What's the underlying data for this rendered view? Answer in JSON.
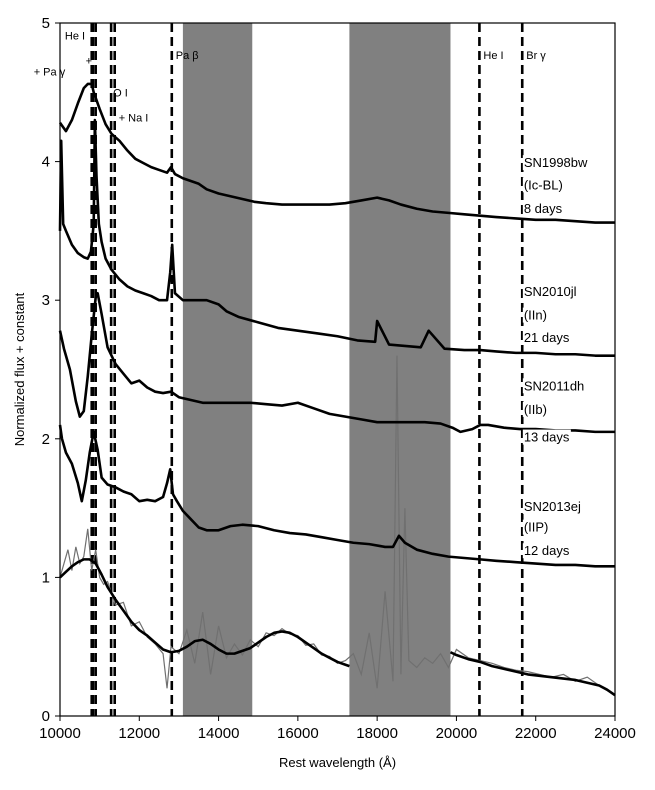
{
  "chart_data": {
    "type": "line",
    "xlabel": "Rest wavelength (Å)",
    "ylabel": "Normalized flux + constant",
    "xlim": [
      10000,
      24000
    ],
    "ylim": [
      0,
      5
    ],
    "x_ticks": [
      10000,
      12000,
      14000,
      16000,
      18000,
      20000,
      22000,
      24000
    ],
    "y_ticks": [
      0,
      1,
      2,
      3,
      4,
      5
    ],
    "grid": false,
    "shaded_regions": [
      {
        "x0": 13100,
        "x1": 14850,
        "color": "#808080"
      },
      {
        "x0": 17300,
        "x1": 19850,
        "color": "#808080"
      }
    ],
    "line_ids": [
      {
        "label": "+ Pa γ",
        "x": 10800,
        "label_y": 4.62
      },
      {
        "label": "He I",
        "x": 10830,
        "label_y": 4.88
      },
      {
        "label": "+",
        "x": 10900,
        "label_y": 4.7
      },
      {
        "label": "O I",
        "x": 11290,
        "label_y": 4.47
      },
      {
        "label": "+ Na I",
        "x": 11380,
        "label_y": 4.29
      },
      {
        "label": "Pa β",
        "x": 12820,
        "label_y": 4.74
      },
      {
        "label": "He I",
        "x": 20580,
        "label_y": 4.74
      },
      {
        "label": "Br γ",
        "x": 21660,
        "label_y": 4.74
      }
    ],
    "series": [
      {
        "name_lines": [
          "SN1998bw",
          "(Ic-BL)",
          "8 days"
        ],
        "label_y": [
          3.96,
          3.8,
          3.63
        ],
        "color": "#000000",
        "x": [
          10000,
          10150,
          10300,
          10450,
          10600,
          10700,
          10800,
          10850,
          10900,
          11000,
          11150,
          11300,
          11500,
          11700,
          11900,
          12100,
          12300,
          12500,
          12700,
          12800,
          12900,
          13100,
          13300,
          13500,
          13700,
          14000,
          14300,
          14600,
          14900,
          15200,
          15600,
          16000,
          16400,
          16800,
          17200,
          17600,
          18000,
          18300,
          18600,
          19000,
          19400,
          19800,
          20200,
          20600,
          21000,
          21500,
          22000,
          22500,
          23000,
          23500,
          24000
        ],
        "values": [
          4.28,
          4.22,
          4.3,
          4.42,
          4.53,
          4.56,
          4.56,
          4.5,
          4.46,
          4.38,
          4.27,
          4.2,
          4.15,
          4.08,
          4.02,
          3.99,
          3.96,
          3.94,
          3.92,
          3.96,
          3.91,
          3.88,
          3.86,
          3.84,
          3.8,
          3.77,
          3.75,
          3.73,
          3.71,
          3.7,
          3.69,
          3.69,
          3.69,
          3.69,
          3.7,
          3.72,
          3.74,
          3.72,
          3.69,
          3.66,
          3.64,
          3.63,
          3.62,
          3.61,
          3.6,
          3.59,
          3.58,
          3.58,
          3.57,
          3.56,
          3.56
        ]
      },
      {
        "name_lines": [
          "SN2010jl",
          "(IIn)",
          "21 days"
        ],
        "label_y": [
          3.03,
          2.86,
          2.7
        ],
        "color": "#000000",
        "x": [
          10000,
          10030,
          10080,
          10150,
          10300,
          10450,
          10600,
          10700,
          10780,
          10850,
          10880,
          10920,
          10980,
          11050,
          11150,
          11300,
          11500,
          11700,
          11900,
          12100,
          12300,
          12500,
          12700,
          12780,
          12830,
          12900,
          13100,
          13300,
          13500,
          13700,
          14000,
          14200,
          14500,
          15000,
          15500,
          16000,
          16500,
          17000,
          17500,
          17950,
          18000,
          18300,
          18700,
          19100,
          19300,
          19700,
          20200,
          20600,
          21000,
          21500,
          22000,
          22500,
          23000,
          23500,
          24000
        ],
        "values": [
          3.5,
          4.15,
          3.55,
          3.5,
          3.4,
          3.34,
          3.31,
          3.3,
          3.35,
          3.55,
          4.3,
          3.9,
          3.55,
          3.42,
          3.3,
          3.22,
          3.15,
          3.1,
          3.07,
          3.05,
          3.03,
          3.0,
          3.0,
          3.2,
          3.4,
          3.05,
          3.0,
          3.0,
          3.0,
          3.0,
          2.97,
          2.92,
          2.88,
          2.84,
          2.8,
          2.78,
          2.76,
          2.74,
          2.71,
          2.7,
          2.85,
          2.68,
          2.67,
          2.66,
          2.78,
          2.65,
          2.64,
          2.64,
          2.63,
          2.62,
          2.62,
          2.61,
          2.61,
          2.6,
          2.6
        ]
      },
      {
        "name_lines": [
          "SN2011dh",
          "(IIb)",
          "13 days"
        ],
        "label_y": [
          2.35,
          2.18,
          1.98
        ],
        "color": "#000000",
        "x": [
          10000,
          10100,
          10250,
          10400,
          10500,
          10600,
          10700,
          10800,
          10900,
          10950,
          11050,
          11200,
          11400,
          11600,
          11800,
          12000,
          12200,
          12400,
          12600,
          12800,
          13000,
          13300,
          13600,
          14000,
          14400,
          14800,
          15200,
          15600,
          16000,
          16400,
          16800,
          17200,
          17600,
          18000,
          18400,
          18800,
          19200,
          19600,
          19900,
          20100,
          20400,
          20600,
          20800,
          21200,
          21600,
          22000,
          22500,
          23000,
          23500,
          24000
        ],
        "values": [
          2.78,
          2.65,
          2.5,
          2.27,
          2.16,
          2.2,
          2.45,
          2.75,
          3.02,
          3.05,
          2.9,
          2.66,
          2.54,
          2.47,
          2.4,
          2.42,
          2.37,
          2.34,
          2.33,
          2.34,
          2.3,
          2.28,
          2.26,
          2.26,
          2.26,
          2.26,
          2.25,
          2.24,
          2.26,
          2.22,
          2.18,
          2.16,
          2.14,
          2.12,
          2.12,
          2.12,
          2.12,
          2.11,
          2.08,
          2.05,
          2.07,
          2.1,
          2.1,
          2.08,
          2.07,
          2.07,
          2.06,
          2.06,
          2.05,
          2.05
        ]
      },
      {
        "name_lines": [
          "SN2013ej",
          "(IIP)",
          "12 days"
        ],
        "label_y": [
          1.48,
          1.33,
          1.16
        ],
        "color": "#000000",
        "x": [
          10000,
          10050,
          10150,
          10300,
          10450,
          10550,
          10650,
          10750,
          10850,
          10950,
          11050,
          11200,
          11400,
          11600,
          11800,
          12000,
          12200,
          12400,
          12600,
          12700,
          12780,
          12850,
          12950,
          13100,
          13300,
          13500,
          13700,
          14000,
          14300,
          14600,
          15000,
          15400,
          15800,
          16200,
          16600,
          17000,
          17400,
          17800,
          18200,
          18400,
          18550,
          18700,
          19000,
          19400,
          19800,
          20200,
          20600,
          21000,
          21500,
          22000,
          22500,
          23000,
          23500,
          24000
        ],
        "values": [
          2.1,
          2.0,
          1.9,
          1.82,
          1.68,
          1.55,
          1.7,
          1.9,
          2.05,
          1.92,
          1.72,
          1.67,
          1.65,
          1.62,
          1.6,
          1.55,
          1.56,
          1.55,
          1.58,
          1.68,
          1.78,
          1.6,
          1.55,
          1.48,
          1.42,
          1.36,
          1.34,
          1.34,
          1.37,
          1.38,
          1.37,
          1.34,
          1.32,
          1.31,
          1.29,
          1.27,
          1.25,
          1.24,
          1.22,
          1.22,
          1.3,
          1.25,
          1.2,
          1.17,
          1.15,
          1.14,
          1.13,
          1.12,
          1.11,
          1.1,
          1.09,
          1.09,
          1.08,
          1.08
        ]
      },
      {
        "name": "",
        "color": "#000000",
        "x": [
          10000,
          10150,
          10300,
          10450,
          10600,
          10750,
          10900,
          11050,
          11200,
          11400,
          11600,
          11800,
          12000,
          12200,
          12400,
          12600,
          12800,
          13000,
          13200,
          13400,
          13600,
          13800,
          14000,
          14200,
          14400,
          14600,
          14800,
          15000,
          15200,
          15400,
          15600,
          15800,
          16000,
          16200,
          16400,
          16600,
          16800,
          17000,
          17200,
          17300
        ],
        "values": [
          1.0,
          1.04,
          1.08,
          1.11,
          1.13,
          1.13,
          1.1,
          1.02,
          0.93,
          0.84,
          0.76,
          0.68,
          0.62,
          0.58,
          0.53,
          0.48,
          0.46,
          0.47,
          0.5,
          0.54,
          0.55,
          0.52,
          0.48,
          0.45,
          0.45,
          0.47,
          0.49,
          0.53,
          0.57,
          0.6,
          0.61,
          0.6,
          0.57,
          0.53,
          0.49,
          0.45,
          0.42,
          0.39,
          0.37,
          0.36
        ]
      },
      {
        "name": "",
        "color": "#000000",
        "x": [
          19850,
          20000,
          20300,
          20600,
          20900,
          21200,
          21500,
          21800,
          22100,
          22400,
          22700,
          23000,
          23300,
          23600,
          23800,
          24000
        ],
        "values": [
          0.46,
          0.44,
          0.41,
          0.39,
          0.36,
          0.34,
          0.32,
          0.3,
          0.29,
          0.28,
          0.27,
          0.26,
          0.24,
          0.22,
          0.19,
          0.15
        ]
      }
    ],
    "noise_series": {
      "name": "",
      "color": "#707070",
      "x": [
        10000,
        10100,
        10200,
        10300,
        10400,
        10500,
        10600,
        10700,
        10800,
        10900,
        11000,
        11100,
        11200,
        11400,
        11600,
        11800,
        12000,
        12200,
        12400,
        12600,
        12700,
        12800,
        13000,
        13200,
        13400,
        13600,
        13800,
        14000,
        14200,
        14400,
        14600,
        14800,
        15000,
        15200,
        15400,
        15600,
        15800,
        16000,
        16200,
        16400,
        16600,
        16800,
        17000,
        17200,
        17400,
        17600,
        17800,
        18000,
        18200,
        18400,
        18500,
        18600,
        18700,
        18800,
        19000,
        19200,
        19400,
        19600,
        19800,
        20000,
        20300,
        20600,
        20900,
        21200,
        21500,
        21800,
        22100,
        22400,
        22700,
        23000,
        23300,
        23600,
        24000
      ],
      "values": [
        1.0,
        1.1,
        1.2,
        1.05,
        1.22,
        1.1,
        1.15,
        1.35,
        1.05,
        1.2,
        1.0,
        0.95,
        0.97,
        0.8,
        0.82,
        0.65,
        0.68,
        0.57,
        0.52,
        0.45,
        0.2,
        0.5,
        0.45,
        0.62,
        0.38,
        0.75,
        0.3,
        0.65,
        0.42,
        0.52,
        0.44,
        0.55,
        0.5,
        0.6,
        0.58,
        0.63,
        0.59,
        0.58,
        0.51,
        0.52,
        0.44,
        0.43,
        0.38,
        0.4,
        0.45,
        0.3,
        0.6,
        0.2,
        0.9,
        0.25,
        2.6,
        0.3,
        1.5,
        0.4,
        0.35,
        0.42,
        0.38,
        0.45,
        0.35,
        0.48,
        0.42,
        0.4,
        0.38,
        0.35,
        0.33,
        0.32,
        0.3,
        0.28,
        0.3,
        0.25,
        0.28,
        0.22,
        0.15
      ]
    }
  }
}
